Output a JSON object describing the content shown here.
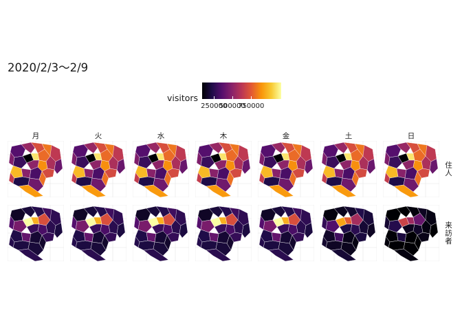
{
  "title": "2020/2/3〜2/9",
  "legend": {
    "title": "visitors",
    "ticks": [
      "250000",
      "500000",
      "750000"
    ],
    "tick_positions": [
      0.15,
      0.38,
      0.62
    ],
    "colors": [
      "#000004",
      "#1f0c48",
      "#550f6d",
      "#88226a",
      "#ba3655",
      "#e35933",
      "#f9950a",
      "#f8c932",
      "#fcffa4"
    ]
  },
  "columns": [
    "月",
    "火",
    "水",
    "木",
    "金",
    "土",
    "日"
  ],
  "rows": [
    "住人",
    "来訪者"
  ],
  "chart_data": {
    "type": "choropleth-facets",
    "title": "2020/2/3〜2/9",
    "legend_title": "visitors",
    "legend_ticks": [
      250000,
      500000,
      750000
    ],
    "facet_columns": [
      "月",
      "火",
      "水",
      "木",
      "金",
      "土",
      "日"
    ],
    "facet_rows": [
      "住人",
      "来訪者"
    ],
    "palette": "inferno",
    "value_range": [
      150000,
      950000
    ],
    "regions": 23,
    "residents_base_values": [
      350000,
      480000,
      620000,
      700000,
      560000,
      430000,
      300000,
      150000,
      900000,
      680000,
      520000,
      390000,
      460000,
      740000,
      610000,
      820000,
      450000,
      330000,
      690000,
      570000,
      250000,
      400000,
      760000
    ],
    "visitors_base_values": [
      200000,
      230000,
      260000,
      310000,
      280000,
      350000,
      420000,
      950000,
      800000,
      620000,
      270000,
      240000,
      300000,
      330000,
      290000,
      250000,
      380000,
      220000,
      210000,
      260000,
      240000,
      230000,
      270000
    ],
    "weekday_scale": [
      1.0,
      1.0,
      1.0,
      1.0,
      1.0,
      0.82,
      0.62
    ]
  }
}
